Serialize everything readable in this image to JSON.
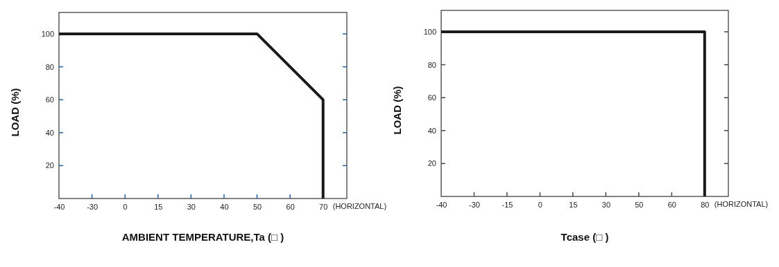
{
  "chart_data": [
    {
      "type": "line",
      "xlabel": "AMBIENT TEMPERATURE,Ta (□ )",
      "ylabel": "LOAD (%)",
      "categories": [
        "-40",
        "-30",
        "0",
        "15",
        "30",
        "40",
        "50",
        "60",
        "70"
      ],
      "ylim": [
        0,
        113
      ],
      "yticks": [
        20,
        40,
        60,
        80,
        100
      ],
      "annotations": [
        "(HORIZONTAL)"
      ],
      "grid": false,
      "marker": "none",
      "line_style": "solid",
      "series": [
        {
          "color": "#1a1a1a",
          "x": [
            "-40",
            "50",
            "70",
            "70"
          ],
          "values": [
            100,
            100,
            60,
            0
          ]
        }
      ]
    },
    {
      "type": "line",
      "xlabel": "Tcase (□ )",
      "ylabel": "LOAD (%)",
      "categories": [
        "-40",
        "-30",
        "-15",
        "0",
        "15",
        "30",
        "50",
        "60",
        "80"
      ],
      "ylim": [
        0,
        113
      ],
      "yticks": [
        20,
        40,
        60,
        80,
        100
      ],
      "annotations": [
        "(HORIZONTAL)"
      ],
      "grid": false,
      "marker": "none",
      "line_style": "solid",
      "series": [
        {
          "color": "#1a1a1a",
          "x": [
            "-40",
            "80",
            "80"
          ],
          "values": [
            100,
            100,
            0
          ]
        }
      ]
    }
  ]
}
